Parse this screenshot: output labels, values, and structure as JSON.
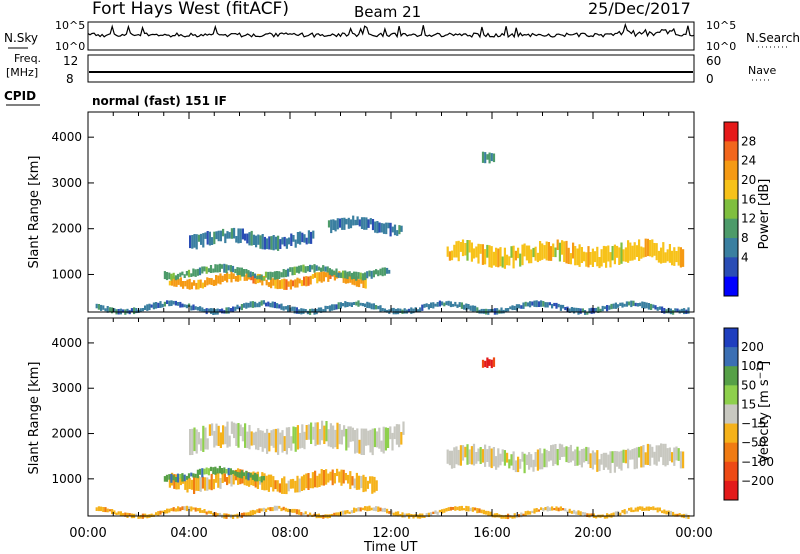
{
  "header": {
    "station": "Fort Hays West (fitACF)",
    "beam": "Beam 21",
    "date": "25/Dec/2017"
  },
  "status": {
    "nsky_label": "N.Sky",
    "nsearch_label": "N.Search",
    "freq_label_top": "Freq.",
    "freq_label_unit": "[MHz]",
    "nave_label": "Nave",
    "cpid_label": "CPID",
    "cpid_value": "normal (fast) 151 IF",
    "noise_ticks": [
      "10^5",
      "10^0"
    ],
    "freq_ticks": [
      "12",
      "8"
    ],
    "nave_ticks": [
      "60",
      "0"
    ]
  },
  "chart_data": [
    {
      "type": "heatmap",
      "panel": "power",
      "xlabel": "",
      "ylabel": "Slant Range [km]",
      "x_ticks": [
        "00:00",
        "04:00",
        "08:00",
        "12:00",
        "16:00",
        "20:00",
        "00:00"
      ],
      "xlim_hours": [
        0,
        24
      ],
      "y_ticks": [
        1000,
        2000,
        3000,
        4000
      ],
      "ylim": [
        180,
        4550
      ],
      "colorbar_label": "Power [dB]",
      "colorbar_ticks": [
        "4",
        "8",
        "12",
        "16",
        "20",
        "24",
        "28"
      ],
      "colorbar_range": [
        0,
        30
      ],
      "colors": [
        "#0000ff",
        "#2a4db5",
        "#3a7fa0",
        "#4d9b6a",
        "#7fbf3f",
        "#f7c21a",
        "#f59a14",
        "#f2661c",
        "#e61a1a"
      ],
      "bands": [
        {
          "t0": 3.2,
          "t1": 11.0,
          "r0": 750,
          "r1": 1000,
          "level": 24
        },
        {
          "t0": 3.0,
          "t1": 12.0,
          "r0": 950,
          "r1": 1150,
          "level": 12
        },
        {
          "t0": 4.0,
          "t1": 9.0,
          "r0": 1600,
          "r1": 1950,
          "level": 8
        },
        {
          "t0": 9.5,
          "t1": 12.5,
          "r0": 1900,
          "r1": 2200,
          "level": 8
        },
        {
          "t0": 14.2,
          "t1": 23.6,
          "r0": 1200,
          "r1": 1700,
          "level": 18
        },
        {
          "t0": 15.6,
          "t1": 16.1,
          "r0": 3350,
          "r1": 3600,
          "level": 12
        },
        {
          "t0": 0.3,
          "t1": 23.8,
          "r0": 200,
          "r1": 350,
          "level": 6
        }
      ]
    },
    {
      "type": "heatmap",
      "panel": "velocity",
      "xlabel": "Time UT",
      "ylabel": "Slant Range [km]",
      "x_ticks": [
        "00:00",
        "04:00",
        "08:00",
        "12:00",
        "16:00",
        "20:00",
        "00:00"
      ],
      "xlim_hours": [
        0,
        24
      ],
      "y_ticks": [
        1000,
        2000,
        3000,
        4000
      ],
      "ylim": [
        180,
        4550
      ],
      "colorbar_label": "Velocity [m s^-1]",
      "colorbar_ticks": [
        "200",
        "100",
        "50",
        "15",
        "−15",
        "−50",
        "−100",
        "−200"
      ],
      "colors": [
        "#1f3fbf",
        "#3b6fb3",
        "#56a047",
        "#8ed04c",
        "#c8c8c0",
        "#f5b21a",
        "#f07b12",
        "#ee4a15",
        "#e31a1a"
      ],
      "bands": [
        {
          "t0": 3.2,
          "t1": 11.5,
          "r0": 750,
          "r1": 1150,
          "level": -30
        },
        {
          "t0": 3.0,
          "t1": 7.0,
          "r0": 1000,
          "r1": 1200,
          "level": 40
        },
        {
          "t0": 4.0,
          "t1": 12.5,
          "r0": 1600,
          "r1": 2200,
          "level": 0
        },
        {
          "t0": 14.2,
          "t1": 23.6,
          "r0": 1200,
          "r1": 1700,
          "level": 0
        },
        {
          "t0": 15.6,
          "t1": 16.1,
          "r0": 3350,
          "r1": 3600,
          "level": -200
        },
        {
          "t0": 0.3,
          "t1": 23.8,
          "r0": 200,
          "r1": 320,
          "level": -40
        }
      ]
    }
  ]
}
